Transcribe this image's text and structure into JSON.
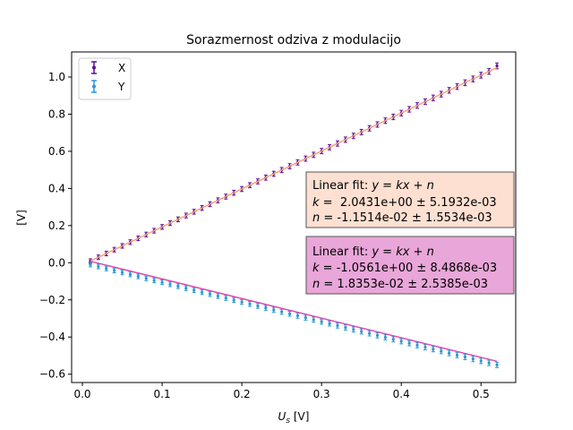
{
  "chart_data": {
    "type": "scatter",
    "title": "Sorazmernost odziva z modulacijo",
    "xlabel": "U_s [V]",
    "ylabel": "[V]",
    "xlim": [
      -0.0135,
      0.5435
    ],
    "ylim": [
      -0.645,
      1.135
    ],
    "xticks": [
      0.0,
      0.1,
      0.2,
      0.3,
      0.4,
      0.5
    ],
    "xtick_labels": [
      "0.0",
      "0.1",
      "0.2",
      "0.3",
      "0.4",
      "0.5"
    ],
    "yticks": [
      -0.6,
      -0.4,
      -0.2,
      0.0,
      0.2,
      0.4,
      0.6,
      0.8,
      1.0
    ],
    "ytick_labels": [
      "−0.6",
      "−0.4",
      "−0.2",
      "0.0",
      "0.2",
      "0.4",
      "0.6",
      "0.8",
      "1.0"
    ],
    "grid": false,
    "legend_position": "upper-left",
    "series": [
      {
        "name": "X",
        "color": "#5c0d99",
        "x_start": 0.01,
        "x_end": 0.52,
        "n_points": 52,
        "k": 2.0431,
        "n": -0.011514,
        "last_value": 1.06
      },
      {
        "name": "Y",
        "color": "#2a96d6",
        "x_start": 0.01,
        "x_end": 0.52,
        "n_points": 52,
        "k": -1.0561,
        "n": 0.018353,
        "first_value": -0.01,
        "last_value": -0.55
      }
    ],
    "fit_lines": [
      {
        "series": "X",
        "color": "#f5a37a",
        "x_range": [
          0.01,
          0.52
        ],
        "k": 2.0431,
        "n": -0.011514
      },
      {
        "series": "Y",
        "color": "#d94fb0",
        "x_range": [
          0.01,
          0.52
        ],
        "k": -1.0561,
        "n": 0.018353
      }
    ],
    "annotations": [
      {
        "id": "fit-box-x",
        "background": "#fde0d2",
        "line1_prefix": "Linear fit: ",
        "line1_formula": "y = kx + n",
        "k_label": "k",
        "k_value": " =  2.0431e+00 ± 5.1932e-03",
        "n_label": "n",
        "n_value": " = -1.1514e-02 ± 1.5534e-03"
      },
      {
        "id": "fit-box-y",
        "background": "#e9a6d9",
        "line1_prefix": "Linear fit: ",
        "line1_formula": "y = kx + n",
        "k_label": "k",
        "k_value": " = -1.0561e+00 ± 8.4868e-03",
        "n_label": "n",
        "n_value": " = 1.8353e-02 ± 2.5385e-03"
      }
    ]
  }
}
